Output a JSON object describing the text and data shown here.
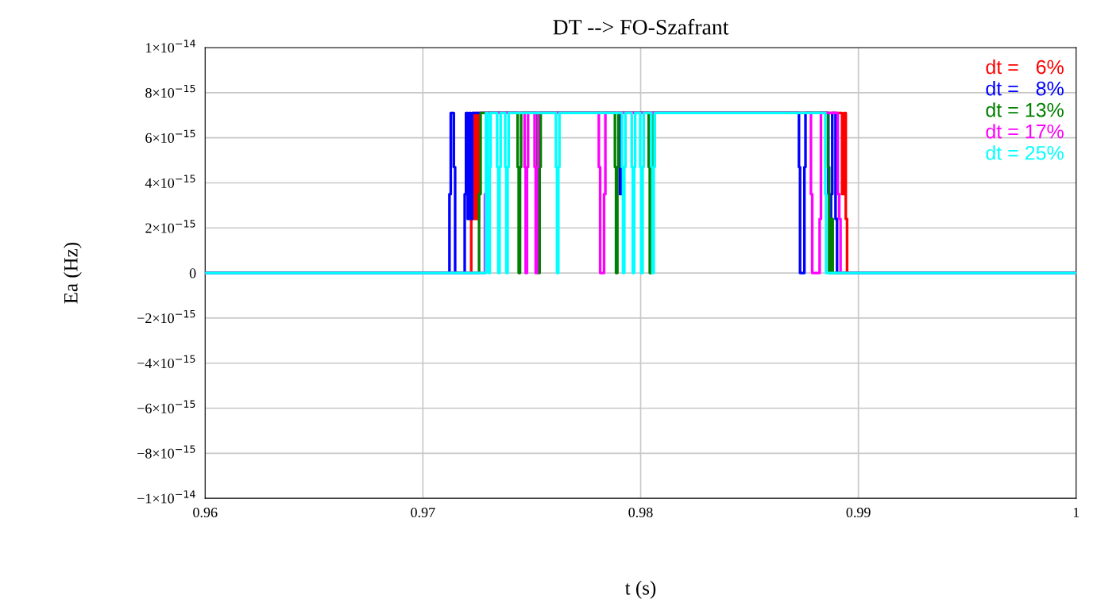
{
  "chart_data": {
    "type": "step",
    "title": "DT --> FO-Szafrant",
    "xlabel": "t (s)",
    "ylabel": "Ea (Hz)",
    "xlim": [
      0.96,
      1.0
    ],
    "xticks": [
      0.96,
      0.97,
      0.98,
      0.99,
      1
    ],
    "ylim": [
      -1e-14,
      1e-14
    ],
    "yticks": [
      {
        "value": -1e-14,
        "label": "−1×10$^{−14}$"
      },
      {
        "value": -8e-15,
        "label": "−8×10$^{−15}$"
      },
      {
        "value": -6e-15,
        "label": "−6×10$^{−15}$"
      },
      {
        "value": -4e-15,
        "label": "−4×10$^{−15}$"
      },
      {
        "value": -2e-15,
        "label": "−2×10$^{−15}$"
      },
      0,
      {
        "value": 2e-15,
        "label": "2×10$^{−15}$"
      },
      {
        "value": 4e-15,
        "label": "4×10$^{−15}$"
      },
      {
        "value": 6e-15,
        "label": "6×10$^{−15}$"
      },
      {
        "value": 8e-15,
        "label": "8×10$^{−15}$"
      },
      {
        "value": 1e-14,
        "label": "1×10$^{−14}$"
      }
    ],
    "grid": true,
    "legend": "top right",
    "line_style": "solid",
    "marker": "none",
    "series": [
      {
        "name": "dt =   6%",
        "color": "#ff0000",
        "x": [
          0.96,
          0.97222,
          0.97229,
          0.97236,
          0.97243,
          0.9725,
          0.97257,
          0.98925,
          0.98935,
          0.98942,
          0.98948,
          1.0
        ],
        "values": [
          0,
          2.4e-15,
          7.1e-15,
          2.4e-15,
          7.1e-15,
          2.4e-15,
          7.1e-15,
          3.5e-15,
          7.1e-15,
          2.4e-15,
          0,
          0
        ]
      },
      {
        "name": "dt =   8%",
        "color": "#0000ff",
        "x": [
          0.96,
          0.97122,
          0.97128,
          0.97142,
          0.97148,
          0.97192,
          0.97198,
          0.97206,
          0.97212,
          0.9722,
          0.97226,
          0.97905,
          0.97912,
          0.98727,
          0.98732,
          0.98752,
          0.98757,
          0.98862,
          0.98868,
          0.98874,
          0.9888,
          0.98895,
          0.98902,
          1.0
        ],
        "values": [
          0,
          3.5e-15,
          7.1e-15,
          4.7e-15,
          0,
          3.5e-15,
          7.1e-15,
          2.4e-15,
          7.1e-15,
          2.4e-15,
          7.1e-15,
          3.5e-15,
          7.1e-15,
          4.7e-15,
          0,
          4.7e-15,
          7.1e-15,
          3.5e-15,
          0,
          3.5e-15,
          7.1e-15,
          2.4e-15,
          0,
          0
        ]
      },
      {
        "name": "dt = 13%",
        "color": "#008000",
        "x": [
          0.96,
          0.97258,
          0.97265,
          0.97435,
          0.9744,
          0.97446,
          0.97451,
          0.97525,
          0.9753,
          0.97536,
          0.97541,
          0.97882,
          0.97887,
          0.97893,
          0.97898,
          0.98037,
          0.98042,
          0.98048,
          0.98053,
          0.9886,
          0.98866,
          0.98872,
          0.98882,
          1.0
        ],
        "values": [
          0,
          3.5e-15,
          7.1e-15,
          4.7e-15,
          0,
          4.7e-15,
          7.1e-15,
          4.7e-15,
          0,
          4.7e-15,
          7.1e-15,
          4.7e-15,
          0,
          4.7e-15,
          7.1e-15,
          4.7e-15,
          0,
          4.7e-15,
          7.1e-15,
          4.7e-15,
          0,
          2.4e-15,
          0,
          0
        ]
      },
      {
        "name": "dt = 17%",
        "color": "#ff00ff",
        "x": [
          0.96,
          0.97285,
          0.97292,
          0.97467,
          0.97472,
          0.97478,
          0.97483,
          0.97513,
          0.97518,
          0.97524,
          0.97529,
          0.97808,
          0.97814,
          0.97832,
          0.97838,
          0.98782,
          0.98788,
          0.98822,
          0.98828,
          0.98905,
          0.98912,
          0.98918,
          1.0
        ],
        "values": [
          0,
          3.5e-15,
          7.1e-15,
          4.7e-15,
          0,
          4.7e-15,
          7.1e-15,
          4.7e-15,
          0,
          4.7e-15,
          7.1e-15,
          4.7e-15,
          0,
          3.5e-15,
          7.1e-15,
          3.5e-15,
          0,
          2.4e-15,
          7.1e-15,
          3.5e-15,
          2.4e-15,
          0,
          0
        ]
      },
      {
        "name": "dt = 25%",
        "color": "#00ffff",
        "x": [
          0.96,
          0.9729,
          0.97298,
          0.97302,
          0.97307,
          0.97311,
          0.97341,
          0.97346,
          0.97352,
          0.97357,
          0.97378,
          0.97383,
          0.97389,
          0.97394,
          0.97611,
          0.97616,
          0.97622,
          0.97627,
          0.97914,
          0.97919,
          0.97925,
          0.9793,
          0.97959,
          0.97964,
          0.9797,
          0.97975,
          0.97998,
          0.98003,
          0.98009,
          0.98014,
          0.98049,
          0.98054,
          0.9806,
          0.98065,
          0.98848,
          0.98852,
          1.0
        ],
        "values": [
          0,
          7.1e-15,
          4.7e-15,
          0,
          4.7e-15,
          7.1e-15,
          4.7e-15,
          0,
          4.7e-15,
          7.1e-15,
          4.7e-15,
          0,
          4.7e-15,
          7.1e-15,
          4.7e-15,
          0,
          4.7e-15,
          7.1e-15,
          4.7e-15,
          0,
          4.7e-15,
          7.1e-15,
          4.7e-15,
          0,
          4.7e-15,
          7.1e-15,
          4.7e-15,
          0,
          4.7e-15,
          7.1e-15,
          4.7e-15,
          0,
          4.7e-15,
          7.1e-15,
          3.5e-15,
          0,
          0
        ]
      }
    ]
  }
}
